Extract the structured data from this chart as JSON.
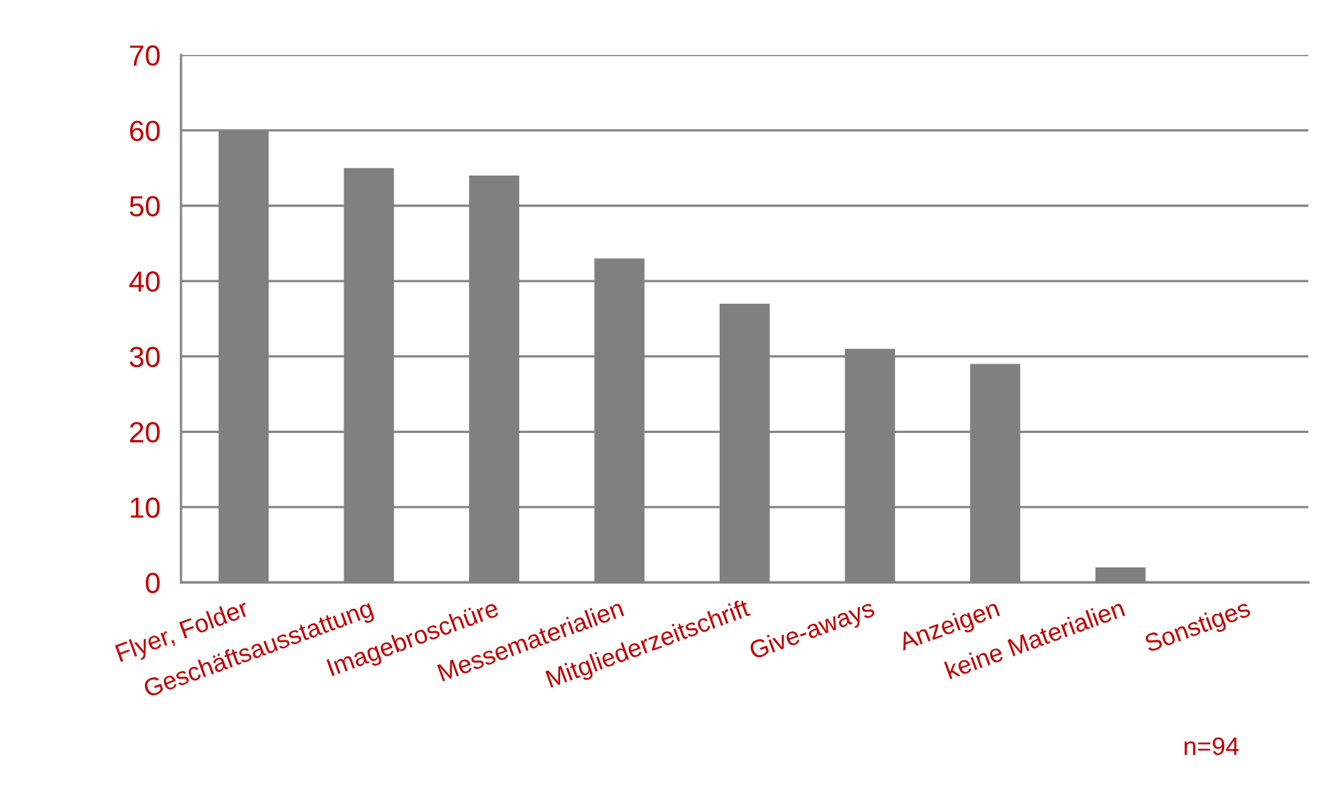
{
  "chart_data": {
    "type": "bar",
    "categories": [
      "Flyer, Folder",
      "Geschäftsausstattung",
      "Imagebroschüre",
      "Messematerialien",
      "Mitgliederzeitschrift",
      "Give-aways",
      "Anzeigen",
      "keine Materialien",
      "Sonstiges"
    ],
    "values": [
      60,
      55,
      54,
      43,
      37,
      31,
      29,
      2,
      0
    ],
    "color": "#808080",
    "ylim": [
      0,
      70
    ],
    "yticks": [
      0,
      10,
      20,
      30,
      40,
      50,
      60,
      70
    ],
    "grid": "y",
    "annotations": [
      "n=94"
    ]
  }
}
